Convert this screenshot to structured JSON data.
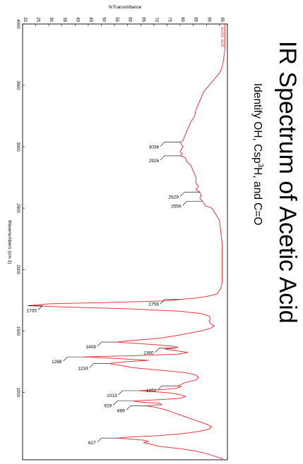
{
  "slide": {
    "title": "IR Spectrum of Acetic Acid",
    "subtitle_pre": "Identify OH, Csp",
    "subtitle_sup": "3",
    "subtitle_post": "H, and C=O"
  },
  "chart_data": {
    "type": "line",
    "xlabel": "Wavenumbers (cm-1)",
    "ylabel": "%Transmittance",
    "xlim": [
      4000,
      450
    ],
    "ylim": [
      20,
      98
    ],
    "x_ticks": [
      4000,
      3500,
      3000,
      2500,
      2000,
      1500,
      1000
    ],
    "y_ticks": [
      20,
      25,
      30,
      35,
      40,
      45,
      50,
      55,
      60,
      65,
      70,
      75,
      80,
      85,
      90,
      95
    ],
    "grid": false,
    "legend": "top-right",
    "series": [
      {
        "name": "acetic acid",
        "color": "#e8383d",
        "points": [
          [
            4000,
            97.0
          ],
          [
            3900,
            97.0
          ],
          [
            3800,
            97.0
          ],
          [
            3700,
            96.5
          ],
          [
            3650,
            96.0
          ],
          [
            3600,
            95.0
          ],
          [
            3550,
            93.0
          ],
          [
            3500,
            91.0
          ],
          [
            3450,
            89.0
          ],
          [
            3400,
            88.0
          ],
          [
            3350,
            87.0
          ],
          [
            3300,
            86.0
          ],
          [
            3250,
            85.5
          ],
          [
            3200,
            84.0
          ],
          [
            3150,
            83.0
          ],
          [
            3100,
            82.0
          ],
          [
            3050,
            81.0
          ],
          [
            3038,
            80.0
          ],
          [
            3020,
            80.5
          ],
          [
            3000,
            81.0
          ],
          [
            2980,
            80.5
          ],
          [
            2960,
            80.0
          ],
          [
            2940,
            80.8
          ],
          [
            2926,
            80.0
          ],
          [
            2910,
            82.0
          ],
          [
            2880,
            82.5
          ],
          [
            2850,
            84.0
          ],
          [
            2800,
            85.0
          ],
          [
            2750,
            86.0
          ],
          [
            2700,
            86.0
          ],
          [
            2680,
            87.0
          ],
          [
            2650,
            86.0
          ],
          [
            2629,
            87.5
          ],
          [
            2600,
            88.0
          ],
          [
            2580,
            87.5
          ],
          [
            2556,
            88.5
          ],
          [
            2540,
            89.0
          ],
          [
            2520,
            89.5
          ],
          [
            2500,
            92.0
          ],
          [
            2450,
            93.5
          ],
          [
            2400,
            95.0
          ],
          [
            2300,
            95.5
          ],
          [
            2200,
            96.0
          ],
          [
            2100,
            96.0
          ],
          [
            2000,
            96.0
          ],
          [
            1900,
            96.0
          ],
          [
            1850,
            95.5
          ],
          [
            1800,
            94.0
          ],
          [
            1780,
            90.0
          ],
          [
            1765,
            85.0
          ],
          [
            1756,
            80.0
          ],
          [
            1745,
            75.0
          ],
          [
            1730,
            50.0
          ],
          [
            1720,
            30.0
          ],
          [
            1705,
            22.0
          ],
          [
            1695,
            35.0
          ],
          [
            1680,
            60.0
          ],
          [
            1660,
            80.0
          ],
          [
            1640,
            88.0
          ],
          [
            1620,
            91.0
          ],
          [
            1600,
            91.5
          ],
          [
            1580,
            91.0
          ],
          [
            1560,
            91.5
          ],
          [
            1540,
            93.0
          ],
          [
            1520,
            91.5
          ],
          [
            1500,
            88.0
          ],
          [
            1480,
            83.0
          ],
          [
            1460,
            78.0
          ],
          [
            1440,
            72.0
          ],
          [
            1425,
            64.0
          ],
          [
            1415,
            58.0
          ],
          [
            1409,
            56.0
          ],
          [
            1400,
            62.0
          ],
          [
            1385,
            72.0
          ],
          [
            1375,
            77.0
          ],
          [
            1368,
            79.0
          ],
          [
            1360,
            78.0
          ],
          [
            1352,
            74.0
          ],
          [
            1340,
            78.0
          ],
          [
            1325,
            83.0
          ],
          [
            1310,
            79.0
          ],
          [
            1298,
            63.0
          ],
          [
            1288,
            43.0
          ],
          [
            1275,
            56.0
          ],
          [
            1260,
            68.0
          ],
          [
            1250,
            60.0
          ],
          [
            1240,
            55.0
          ],
          [
            1233,
            53.0
          ],
          [
            1220,
            57.0
          ],
          [
            1200,
            62.0
          ],
          [
            1180,
            72.0
          ],
          [
            1160,
            82.0
          ],
          [
            1140,
            86.0
          ],
          [
            1120,
            87.0
          ],
          [
            1100,
            86.0
          ],
          [
            1080,
            82.0
          ],
          [
            1060,
            80.0
          ],
          [
            1052,
            79.0
          ],
          [
            1045,
            80.5
          ],
          [
            1030,
            78.0
          ],
          [
            1020,
            72.0
          ],
          [
            1013,
            64.0
          ],
          [
            1005,
            70.0
          ],
          [
            995,
            76.0
          ],
          [
            980,
            80.0
          ],
          [
            965,
            82.0
          ],
          [
            950,
            80.0
          ],
          [
            940,
            72.0
          ],
          [
            929,
            62.0
          ],
          [
            920,
            65.0
          ],
          [
            910,
            72.0
          ],
          [
            900,
            73.0
          ],
          [
            895,
            70.0
          ],
          [
            889,
            67.0
          ],
          [
            880,
            70.0
          ],
          [
            860,
            74.0
          ],
          [
            830,
            78.0
          ],
          [
            800,
            82.0
          ],
          [
            770,
            86.0
          ],
          [
            740,
            90.0
          ],
          [
            720,
            92.0
          ],
          [
            700,
            91.0
          ],
          [
            680,
            87.0
          ],
          [
            660,
            80.0
          ],
          [
            645,
            70.0
          ],
          [
            635,
            61.0
          ],
          [
            627,
            56.0
          ],
          [
            620,
            60.0
          ],
          [
            610,
            66.0
          ],
          [
            600,
            68.0
          ],
          [
            590,
            66.0
          ],
          [
            580,
            68.0
          ],
          [
            560,
            72.0
          ],
          [
            540,
            80.0
          ],
          [
            520,
            86.0
          ],
          [
            500,
            90.0
          ],
          [
            480,
            93.0
          ],
          [
            460,
            96.0
          ],
          [
            450,
            96.0
          ]
        ]
      }
    ],
    "annotations": [
      {
        "label": "3038",
        "x": 3038,
        "y": 80.0
      },
      {
        "label": "2926",
        "x": 2926,
        "y": 80.0
      },
      {
        "label": "2629",
        "x": 2629,
        "y": 87.5
      },
      {
        "label": "2556",
        "x": 2556,
        "y": 88.5
      },
      {
        "label": "1756",
        "x": 1756,
        "y": 80.0
      },
      {
        "label": "1705",
        "x": 1705,
        "y": 22.0
      },
      {
        "label": "1409",
        "x": 1409,
        "y": 56.0
      },
      {
        "label": "1360",
        "x": 1360,
        "y": 78.0
      },
      {
        "label": "1288",
        "x": 1288,
        "y": 43.0
      },
      {
        "label": "1233",
        "x": 1233,
        "y": 53.0
      },
      {
        "label": "1052",
        "x": 1052,
        "y": 79.0
      },
      {
        "label": "1013",
        "x": 1013,
        "y": 64.0
      },
      {
        "label": "929",
        "x": 929,
        "y": 62.0
      },
      {
        "label": "889",
        "x": 889,
        "y": 67.0
      },
      {
        "label": "627",
        "x": 627,
        "y": 56.0
      }
    ]
  }
}
